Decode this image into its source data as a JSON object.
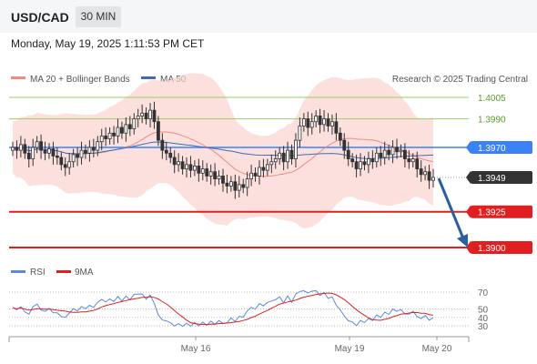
{
  "header": {
    "symbol": "USD/CAD",
    "timeframe": "30 MIN",
    "datetime": "Monday, May 19, 2025 1:11:53 PM CET"
  },
  "legend": {
    "bb_label": "MA 20 + Bollinger Bands",
    "ma50_label": "MA 50",
    "credit": "Research © 2025 Trading Central",
    "rsi_label": "RSI",
    "rsi_ma_label": "9MA"
  },
  "colors": {
    "bb_fill": "#fbd3d0",
    "ma20": "#f08a80",
    "ma50": "#3a6db5",
    "candle": "#333333",
    "support": "#e02020",
    "resistance": "#9ccc65",
    "pivot": "#3b82f6",
    "current": "#333333",
    "arrow": "#2e5d9e",
    "rsi": "#5b8ad8",
    "rsi_ma": "#e02020"
  },
  "chart_data": [
    {
      "type": "candlestick",
      "series": [
        {
          "name": "MA 20 + Bollinger Bands"
        },
        {
          "name": "MA 50"
        }
      ],
      "levels": [
        {
          "value": 1.4005,
          "label": "1.4005",
          "kind": "resistance"
        },
        {
          "value": 1.399,
          "label": "1.3990",
          "kind": "resistance"
        },
        {
          "value": 1.397,
          "label": "1.3970",
          "kind": "pivot"
        },
        {
          "value": 1.3949,
          "label": "1.3949",
          "kind": "current"
        },
        {
          "value": 1.3925,
          "label": "1.3925",
          "kind": "support"
        },
        {
          "value": 1.39,
          "label": "1.3900",
          "kind": "support"
        }
      ],
      "x_ticks": [
        "May 16",
        "May 19",
        "May 20"
      ],
      "closes": [
        1.397,
        1.3968,
        1.3972,
        1.3966,
        1.3962,
        1.397,
        1.3974,
        1.3968,
        1.3966,
        1.3969,
        1.3964,
        1.3963,
        1.3958,
        1.3956,
        1.396,
        1.3965,
        1.3963,
        1.3968,
        1.3966,
        1.397,
        1.3968,
        1.3974,
        1.3978,
        1.3976,
        1.398,
        1.3978,
        1.3984,
        1.398,
        1.3986,
        1.3983,
        1.399,
        1.3992,
        1.3994,
        1.399,
        1.3996,
        1.3988,
        1.3975,
        1.3968,
        1.3966,
        1.3963,
        1.3958,
        1.396,
        1.3955,
        1.3958,
        1.3954,
        1.3957,
        1.3952,
        1.3955,
        1.395,
        1.3953,
        1.3948,
        1.395,
        1.3945,
        1.3943,
        1.3946,
        1.394,
        1.3944,
        1.3942,
        1.3948,
        1.3952,
        1.395,
        1.3956,
        1.3954,
        1.3958,
        1.396,
        1.3962,
        1.3966,
        1.396,
        1.3968,
        1.3962,
        1.3975,
        1.3985,
        1.399,
        1.3984,
        1.3988,
        1.3992,
        1.3986,
        1.399,
        1.3985,
        1.3988,
        1.398,
        1.3975,
        1.3968,
        1.3962,
        1.396,
        1.3955,
        1.396,
        1.3958,
        1.3962,
        1.396,
        1.3966,
        1.3963,
        1.3968,
        1.3965,
        1.397,
        1.3967,
        1.3968,
        1.3962,
        1.396,
        1.3962,
        1.3955,
        1.3951,
        1.3953,
        1.3947,
        1.3949
      ]
    },
    {
      "type": "line",
      "series": [
        {
          "name": "RSI"
        },
        {
          "name": "9MA"
        }
      ],
      "yticks": [
        70,
        50,
        40,
        30
      ],
      "ylim": [
        25,
        75
      ]
    }
  ]
}
